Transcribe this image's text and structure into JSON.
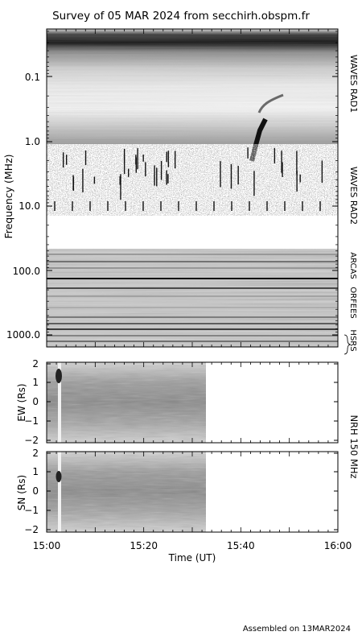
{
  "title": "Survey of 05 MAR 2024 from secchirh.obspm.fr",
  "footer": "Assembled on 13MAR2024",
  "chart_data": [
    {
      "type": "heatmap",
      "name": "dynamic-spectrum",
      "ylabel": "Frequency (MHz)",
      "yscale": "log",
      "yaxis_direction": "increasing-downward",
      "ylim": [
        0.02,
        1500
      ],
      "yticks": [
        "0.1",
        "1.0",
        "10.0",
        "100.0",
        "1000.0"
      ],
      "instruments": [
        "WAVES RAD1",
        "WAVES RAD2",
        "ARCAS",
        "ORFEES",
        "HSRS"
      ],
      "colormap": "grayscale-inverted",
      "features": {
        "type_III_burst_time": "15:43",
        "type_III_burst_freq_range_mhz": [
          0.2,
          6
        ]
      }
    },
    {
      "type": "heatmap",
      "name": "nrh-ew",
      "ylabel": "EW (Rs)",
      "ylim": [
        -2.2,
        2.2
      ],
      "yticks": [
        "2",
        "1",
        "0",
        "−1",
        "−2"
      ],
      "data_end_time": "15:33"
    },
    {
      "type": "heatmap",
      "name": "nrh-sn",
      "ylabel": "SN (Rs)",
      "ylim": [
        -2.2,
        2.2
      ],
      "yticks": [
        "2",
        "1",
        "0",
        "−1",
        "−2"
      ],
      "data_end_time": "15:33"
    }
  ],
  "nrh_label": "NRH 150 MHz",
  "xaxis": {
    "xlabel": "Time (UT)",
    "xlim": [
      "15:00",
      "16:00"
    ],
    "xticks": [
      "15:00",
      "15:20",
      "15:40",
      "16:00"
    ]
  }
}
